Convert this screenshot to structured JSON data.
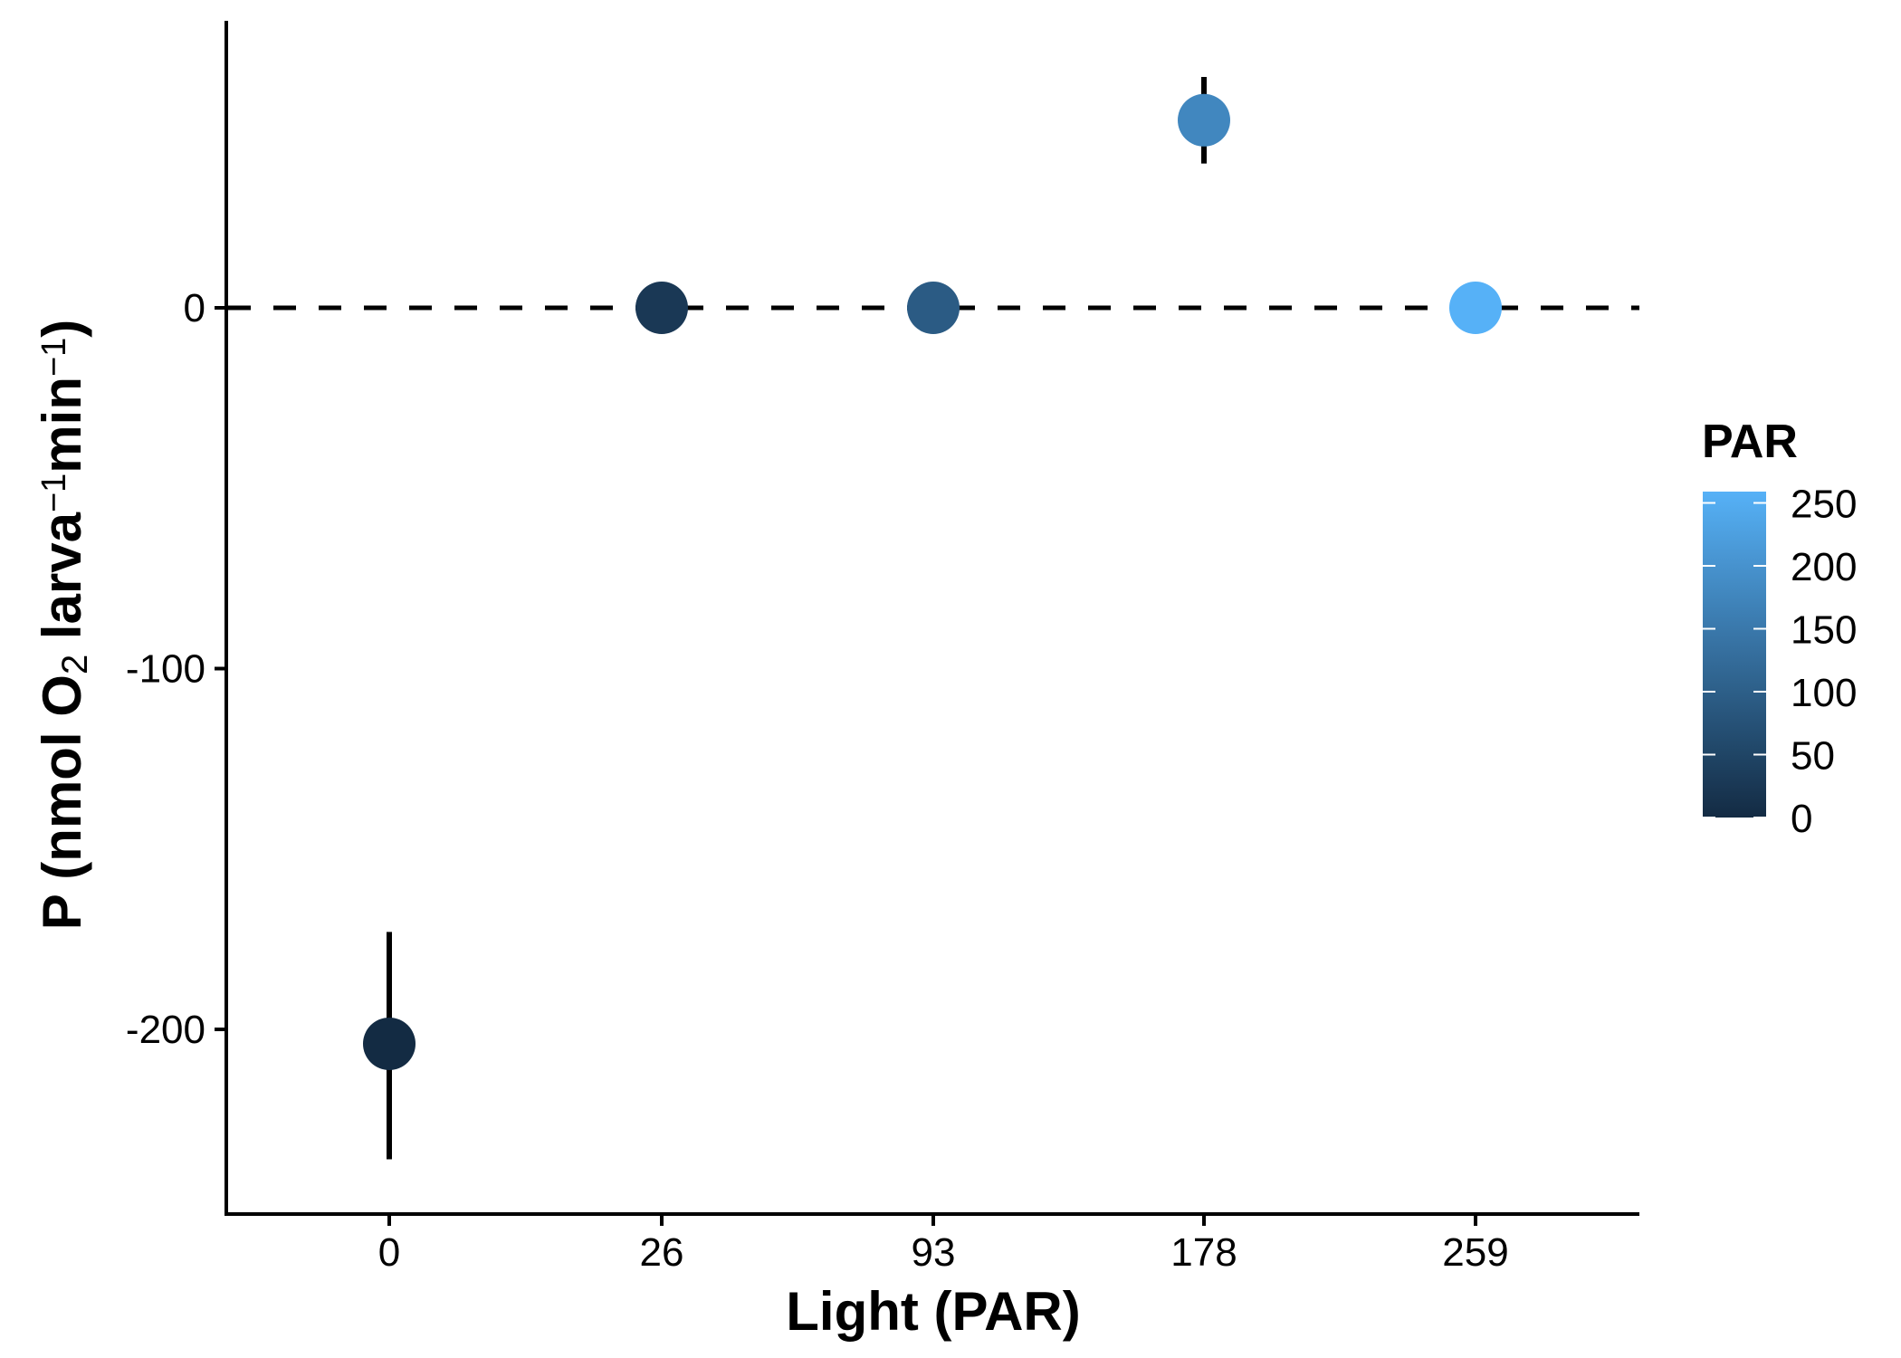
{
  "chart_data": {
    "type": "scatter",
    "xlabel": "Light (PAR)",
    "ylabel": {
      "parts": [
        {
          "text": "P (nmol O",
          "shift": "normal"
        },
        {
          "text": "2",
          "shift": "sub"
        },
        {
          "text": " larva",
          "shift": "normal"
        },
        {
          "text": "−1",
          "shift": "super"
        },
        {
          "text": "min",
          "shift": "normal"
        },
        {
          "text": "−1",
          "shift": "super"
        },
        {
          "text": ")",
          "shift": "normal"
        }
      ]
    },
    "x_categories": [
      "0",
      "26",
      "93",
      "178",
      "259"
    ],
    "y_ticks": [
      0,
      -100,
      -200
    ],
    "y_tick_labels": [
      "0",
      "-100",
      "-200"
    ],
    "ylim": [
      -251,
      80
    ],
    "reference_line": {
      "y": 0,
      "style": "dashed"
    },
    "points": [
      {
        "x": "0",
        "par": 0,
        "y": -204,
        "err_low": -236,
        "err_high": -173
      },
      {
        "x": "26",
        "par": 26,
        "y": 0
      },
      {
        "x": "93",
        "par": 93,
        "y": 0
      },
      {
        "x": "178",
        "par": 178,
        "y": 52,
        "err_low": 40,
        "err_high": 64
      },
      {
        "x": "259",
        "par": 259,
        "y": 0
      }
    ],
    "legend": {
      "title": "PAR",
      "position": "right",
      "scale_min": 0,
      "scale_max": 259,
      "color_low": "#132B43",
      "color_high": "#56B1F7",
      "ticks": [
        0,
        50,
        100,
        150,
        200,
        250
      ],
      "tick_labels": [
        "0",
        "50",
        "100",
        "150",
        "200",
        "250"
      ]
    }
  }
}
